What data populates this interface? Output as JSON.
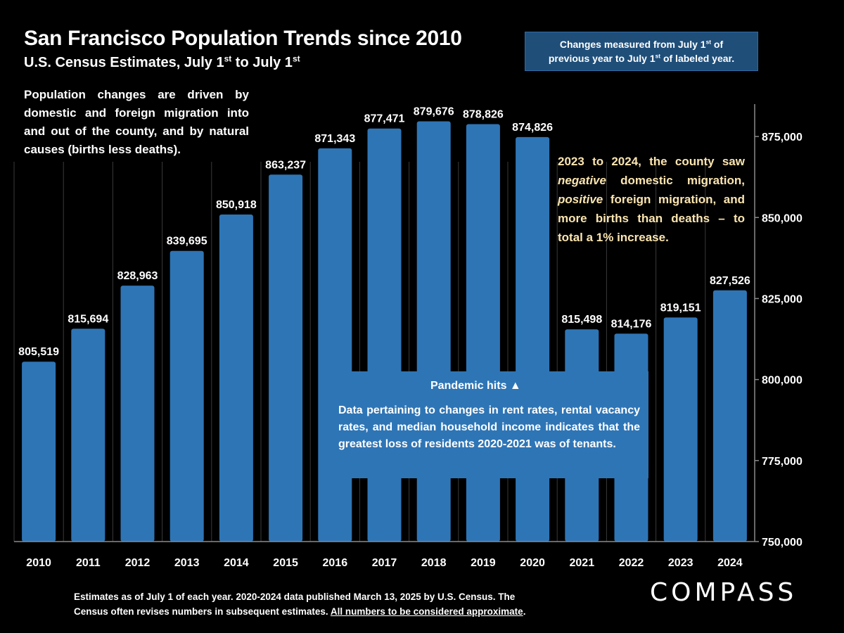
{
  "title": "San Francisco Population Trends since 2010",
  "subtitle": {
    "prefix": "U.S. Census Estimates, July 1",
    "sup1": "st",
    "mid": " to July 1",
    "sup2": "st"
  },
  "note_box": {
    "line1_prefix": "Changes measured from July 1",
    "line1_sup": "st",
    "line1_suffix": " of",
    "line2_prefix": "previous year to July 1",
    "line2_sup": "st",
    "line2_suffix": " of labeled year."
  },
  "intro_text": "Population changes are driven by domestic and foreign migration into and out of the county, and by natural causes (births less deaths).",
  "right_note": {
    "part1": "2023 to 2024, the county saw ",
    "neg": "negative",
    "part2": " domestic migration, ",
    "pos": "positive",
    "part3": " foreign migration, and more births than deaths – to total a 1% increase."
  },
  "pandemic_label": "Pandemic hits ▲",
  "data_note": "Data pertaining to changes in rent rates, rental vacancy rates, and  median household income indicates that the greatest loss of residents 2020-2021 was of tenants.",
  "footer": {
    "line1": "Estimates as of July 1 of each year. 2020-2024 data published March 13, 2025 by U.S. Census. The",
    "line2_prefix": "Census often revises numbers in subsequent estimates. ",
    "line2_underlined": "All numbers to be considered approximate",
    "line2_suffix": "."
  },
  "logo": "COMPASS",
  "chart_data": {
    "type": "bar",
    "categories": [
      "2010",
      "2011",
      "2012",
      "2013",
      "2014",
      "2015",
      "2016",
      "2017",
      "2018",
      "2019",
      "2020",
      "2021",
      "2022",
      "2023",
      "2024"
    ],
    "values": [
      805519,
      815694,
      828963,
      839695,
      850918,
      863237,
      871343,
      877471,
      879676,
      878826,
      874826,
      815498,
      814176,
      819151,
      827526
    ],
    "value_labels": [
      "805,519",
      "815,694",
      "828,963",
      "839,695",
      "850,918",
      "863,237",
      "871,343",
      "877,471",
      "879,676",
      "878,826",
      "874,826",
      "815,498",
      "814,176",
      "819,151",
      "827,526"
    ],
    "ylim": [
      750000,
      885000
    ],
    "yticks": [
      750000,
      775000,
      800000,
      825000,
      850000,
      875000
    ],
    "ytick_labels": [
      "750,000",
      "775,000",
      "800,000",
      "825,000",
      "850,000",
      "875,000"
    ],
    "y_axis_side": "right",
    "grid": true,
    "bar_color": "#2e75b6"
  }
}
